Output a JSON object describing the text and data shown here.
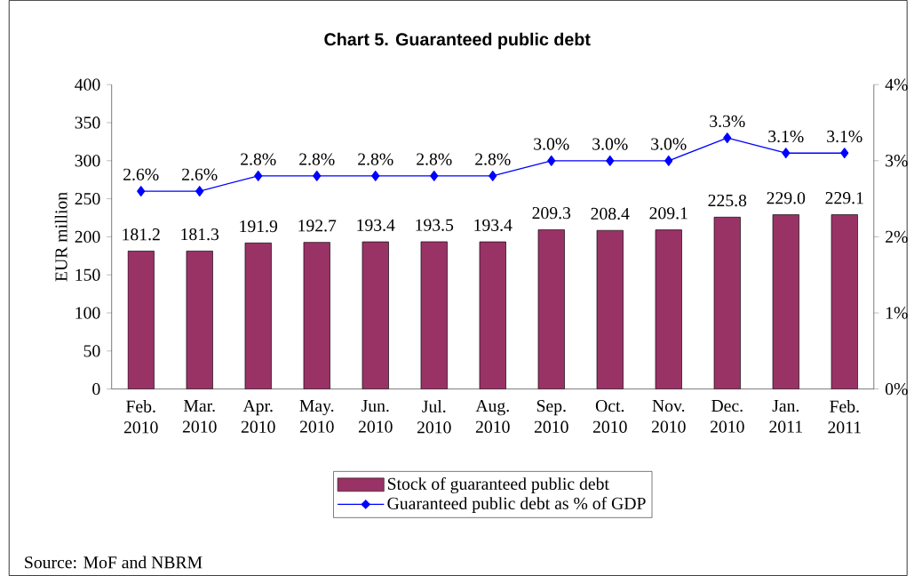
{
  "chart_data": {
    "type": "bar",
    "title": "Chart 5. Guaranteed public debt",
    "ylabel": "EUR million",
    "categories": [
      "Feb. 2010",
      "Mar. 2010",
      "Apr. 2010",
      "May. 2010",
      "Jun. 2010",
      "Jul. 2010",
      "Aug. 2010",
      "Sep. 2010",
      "Oct. 2010",
      "Nov. 2010",
      "Dec. 2010",
      "Jan. 2011",
      "Feb. 2011"
    ],
    "series": [
      {
        "name": "Stock of guaranteed public debt",
        "color": "#993366",
        "values": [
          181.2,
          181.3,
          191.9,
          192.7,
          193.4,
          193.5,
          193.4,
          209.3,
          208.4,
          209.1,
          225.8,
          229.0,
          229.1
        ],
        "value_labels": [
          "181.2",
          "181.3",
          "191.9",
          "192.7",
          "193.4",
          "193.5",
          "193.4",
          "209.3",
          "208.4",
          "209.1",
          "225.8",
          "229.0",
          "229.1"
        ]
      },
      {
        "name": "Guaranteed public debt as % of GDP",
        "type": "line",
        "axis": "y2",
        "color": "#0000ff",
        "marker": "diamond",
        "line_style": "solid",
        "values": [
          2.6,
          2.6,
          2.8,
          2.8,
          2.8,
          2.8,
          2.8,
          3.0,
          3.0,
          3.0,
          3.3,
          3.1,
          3.1
        ],
        "value_labels": [
          "2.6%",
          "2.6%",
          "2.8%",
          "2.8%",
          "2.8%",
          "2.8%",
          "2.8%",
          "3.0%",
          "3.0%",
          "3.0%",
          "3.3%",
          "3.1%",
          "3.1%"
        ]
      }
    ],
    "ylim": [
      0,
      400
    ],
    "yticks": [
      0,
      50,
      100,
      150,
      200,
      250,
      300,
      350,
      400
    ],
    "y2lim": [
      0,
      4
    ],
    "y2ticks": [
      {
        "value": 0,
        "label": "0%"
      },
      {
        "value": 1,
        "label": "1%"
      },
      {
        "value": 2,
        "label": "2%"
      },
      {
        "value": 3,
        "label": "3%"
      },
      {
        "value": 4,
        "label": "4%"
      }
    ],
    "grid": false,
    "legend": "bottom",
    "annotations": [
      "Source: MoF and NBRM"
    ]
  }
}
